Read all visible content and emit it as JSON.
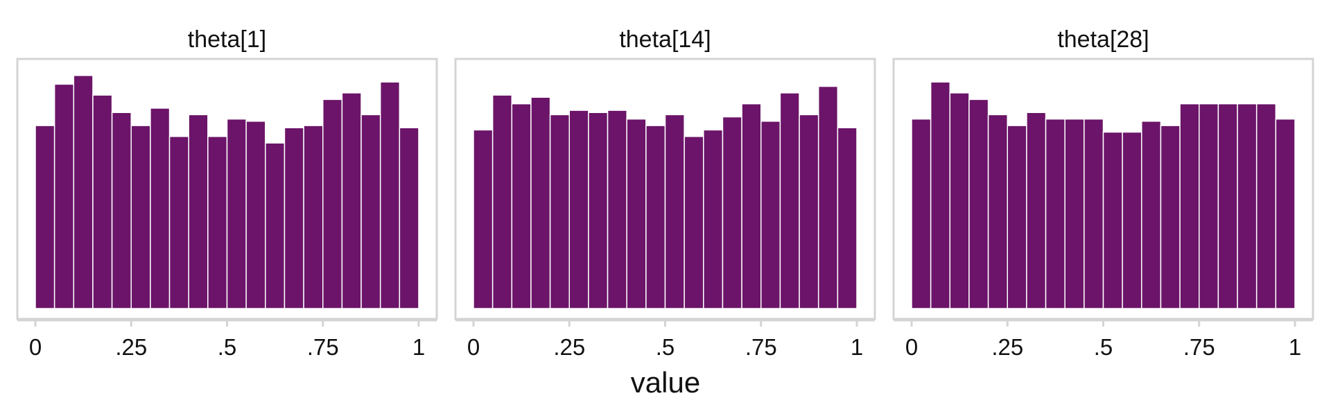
{
  "chart_data": {
    "type": "bar",
    "x_axis_title": "value",
    "xlim": [
      0,
      1
    ],
    "x_ticks": [
      0,
      0.25,
      0.5,
      0.75,
      1
    ],
    "x_tick_labels": [
      "0",
      ".25",
      ".5",
      ".75",
      "1"
    ],
    "y_axis_shown": false,
    "ylim": [
      0,
      1.13
    ],
    "bins": 20,
    "bin_width": 0.05,
    "bar_color": "#6b1469",
    "panels": [
      {
        "title": "theta[1]",
        "values": [
          0.84,
          1.03,
          1.07,
          0.98,
          0.9,
          0.84,
          0.92,
          0.79,
          0.89,
          0.79,
          0.87,
          0.86,
          0.76,
          0.83,
          0.84,
          0.96,
          0.99,
          0.89,
          1.04,
          0.83
        ]
      },
      {
        "title": "theta[14]",
        "values": [
          0.82,
          0.98,
          0.94,
          0.97,
          0.89,
          0.91,
          0.9,
          0.91,
          0.87,
          0.84,
          0.89,
          0.79,
          0.82,
          0.88,
          0.94,
          0.86,
          0.99,
          0.89,
          1.02,
          0.83
        ]
      },
      {
        "title": "theta[28]",
        "values": [
          0.87,
          1.04,
          0.99,
          0.96,
          0.89,
          0.84,
          0.9,
          0.87,
          0.87,
          0.87,
          0.81,
          0.81,
          0.86,
          0.84,
          0.94,
          0.94,
          0.94,
          0.94,
          0.94,
          0.87
        ]
      }
    ]
  }
}
